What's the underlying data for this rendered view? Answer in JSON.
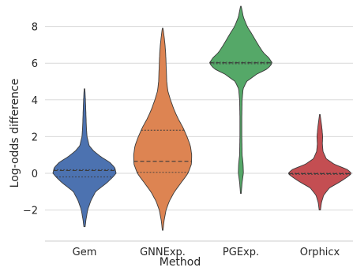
{
  "chart_data": {
    "type": "violin",
    "title": "",
    "xlabel": "Method",
    "ylabel": "Log-odds difference",
    "ylim": [
      -3.4,
      9.2
    ],
    "yticks": [
      -2,
      0,
      2,
      4,
      6,
      8
    ],
    "ytick_labels": [
      "−2",
      "0",
      "2",
      "4",
      "6",
      "8"
    ],
    "grid": "horizontal",
    "categories": [
      "Gem",
      "GNNExp.",
      "PGExp.",
      "Orphicx"
    ],
    "series": [
      {
        "category": "Gem",
        "color": "#4c72b0",
        "range": [
          -2.9,
          4.6
        ],
        "quartiles": [
          -0.2,
          0.15,
          0.2
        ],
        "density": [
          [
            -2.9,
            0.02
          ],
          [
            -2.5,
            0.05
          ],
          [
            -2.0,
            0.1
          ],
          [
            -1.5,
            0.2
          ],
          [
            -1.0,
            0.35
          ],
          [
            -0.5,
            0.72
          ],
          [
            -0.2,
            0.9
          ],
          [
            0.0,
            1.0
          ],
          [
            0.3,
            0.96
          ],
          [
            0.6,
            0.8
          ],
          [
            0.9,
            0.52
          ],
          [
            1.2,
            0.3
          ],
          [
            1.5,
            0.15
          ],
          [
            2.0,
            0.08
          ],
          [
            2.5,
            0.06
          ],
          [
            3.0,
            0.05
          ],
          [
            3.5,
            0.04
          ],
          [
            4.0,
            0.03
          ],
          [
            4.6,
            0.01
          ]
        ]
      },
      {
        "category": "GNNExp.",
        "color": "#dd8452",
        "range": [
          -3.1,
          7.9
        ],
        "quartiles": [
          0.05,
          0.65,
          2.35
        ],
        "density": [
          [
            -3.1,
            0.01
          ],
          [
            -2.6,
            0.04
          ],
          [
            -2.0,
            0.1
          ],
          [
            -1.5,
            0.2
          ],
          [
            -1.0,
            0.35
          ],
          [
            -0.5,
            0.55
          ],
          [
            0.0,
            0.75
          ],
          [
            0.5,
            0.85
          ],
          [
            1.0,
            0.86
          ],
          [
            1.5,
            0.82
          ],
          [
            2.0,
            0.72
          ],
          [
            2.5,
            0.6
          ],
          [
            3.0,
            0.45
          ],
          [
            3.5,
            0.33
          ],
          [
            4.0,
            0.23
          ],
          [
            4.5,
            0.15
          ],
          [
            5.0,
            0.12
          ],
          [
            5.5,
            0.11
          ],
          [
            6.0,
            0.1
          ],
          [
            6.5,
            0.09
          ],
          [
            7.0,
            0.07
          ],
          [
            7.5,
            0.04
          ],
          [
            7.9,
            0.01
          ]
        ]
      },
      {
        "category": "PGExp.",
        "color": "#55a868",
        "range": [
          -1.1,
          9.1
        ],
        "quartiles": [
          5.97,
          6.02,
          6.05
        ],
        "density": [
          [
            -1.1,
            0.01
          ],
          [
            -0.5,
            0.04
          ],
          [
            0.0,
            0.08
          ],
          [
            0.5,
            0.07
          ],
          [
            1.0,
            0.04
          ],
          [
            2.0,
            0.03
          ],
          [
            3.0,
            0.03
          ],
          [
            4.0,
            0.04
          ],
          [
            4.6,
            0.07
          ],
          [
            5.0,
            0.18
          ],
          [
            5.4,
            0.5
          ],
          [
            5.7,
            0.85
          ],
          [
            6.0,
            1.0
          ],
          [
            6.3,
            0.88
          ],
          [
            6.6,
            0.7
          ],
          [
            7.0,
            0.55
          ],
          [
            7.5,
            0.38
          ],
          [
            8.0,
            0.2
          ],
          [
            8.5,
            0.08
          ],
          [
            9.1,
            0.01
          ]
        ]
      },
      {
        "category": "Orphicx",
        "color": "#c44e52",
        "range": [
          -2.0,
          3.2
        ],
        "quartiles": [
          -0.05,
          -0.02,
          0.0
        ],
        "density": [
          [
            -2.0,
            0.02
          ],
          [
            -1.6,
            0.05
          ],
          [
            -1.2,
            0.12
          ],
          [
            -0.8,
            0.3
          ],
          [
            -0.4,
            0.7
          ],
          [
            -0.1,
            0.95
          ],
          [
            0.0,
            1.0
          ],
          [
            0.2,
            0.88
          ],
          [
            0.5,
            0.45
          ],
          [
            0.8,
            0.2
          ],
          [
            1.2,
            0.1
          ],
          [
            1.6,
            0.08
          ],
          [
            2.0,
            0.09
          ],
          [
            2.4,
            0.07
          ],
          [
            2.8,
            0.04
          ],
          [
            3.2,
            0.01
          ]
        ]
      }
    ]
  }
}
